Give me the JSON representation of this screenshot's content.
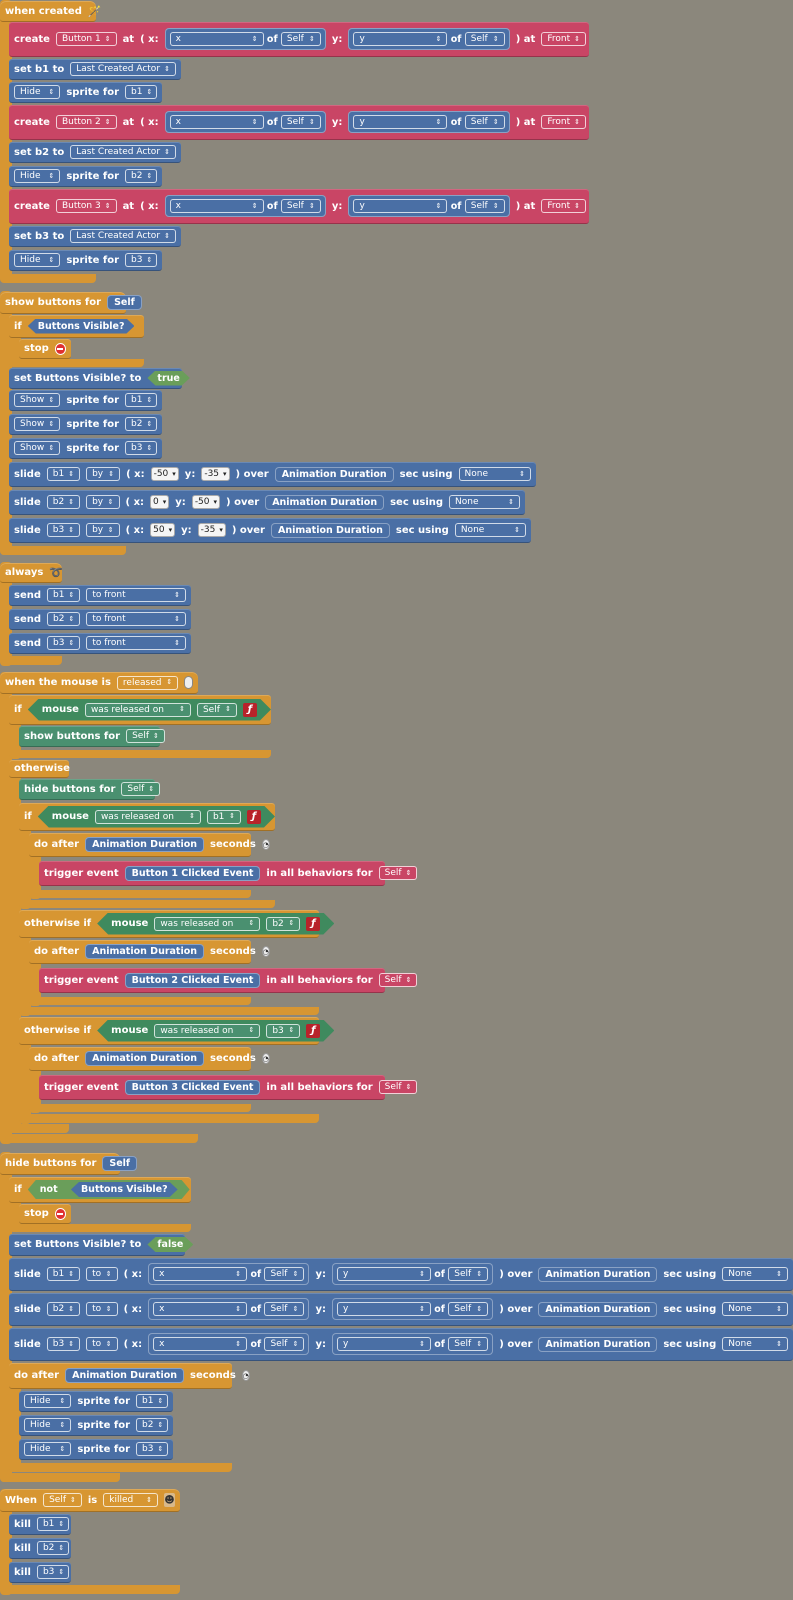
{
  "colors": {
    "background": "#8b877c",
    "orange": "#d79632",
    "red": "#c94565",
    "blue": "#4a6fa5",
    "green": "#4a9070"
  },
  "kw": {
    "create": "create",
    "at": "at",
    "x": "( x:",
    "y": "y:",
    "of": "of",
    "close_at": ") at",
    "set": "set",
    "to": "to",
    "sprite_for": "sprite for",
    "if": "if",
    "stop": "stop",
    "slide": "slide",
    "paren_x": "( x:",
    "over": ") over",
    "sec_using": "sec using",
    "send": "send",
    "mouse": "mouse",
    "otherwise": "otherwise",
    "otherwise_if": "otherwise if",
    "do_after": "do after",
    "seconds": "seconds",
    "trigger_event": "trigger event",
    "in_all_behaviors_for": "in all behaviors for",
    "not": "not",
    "kill": "kill",
    "when": "When",
    "is": "is"
  },
  "common": {
    "x": "x",
    "y": "y",
    "self": "Self",
    "front": "Front",
    "last_created_actor": "Last Created Actor",
    "hide": "Hide",
    "show": "Show",
    "b1": "b1",
    "b2": "b2",
    "b3": "b3",
    "animation_duration": "Animation Duration",
    "none": "None",
    "by": "by",
    "to": "to",
    "to_front": "to front",
    "was_released_on": "was released on",
    "buttons_visible": "Buttons Visible?",
    "true": "true",
    "false": "false"
  },
  "when_created": {
    "title": "when created",
    "buttons": [
      "Button 1",
      "Button 2",
      "Button 3"
    ],
    "set_b1": "set b1 to",
    "set_b2": "set b2 to",
    "set_b3": "set b3 to"
  },
  "show_buttons": {
    "title": "show buttons for",
    "set_label": "set Buttons Visible? to",
    "slides": [
      {
        "x": "-50",
        "y": "-35"
      },
      {
        "x": "0",
        "y": "-50"
      },
      {
        "x": "50",
        "y": "-35"
      }
    ]
  },
  "always": {
    "title": "always"
  },
  "mouse_released": {
    "title": "when the mouse is",
    "state": "released",
    "show_buttons": "show buttons for",
    "hide_buttons": "hide buttons for",
    "events": [
      "Button 1 Clicked Event",
      "Button 2 Clicked Event",
      "Button 3 Clicked Event"
    ]
  },
  "hide_buttons": {
    "title": "hide buttons for",
    "set_label": "set Buttons Visible? to"
  },
  "killed": {
    "state": "killed"
  }
}
